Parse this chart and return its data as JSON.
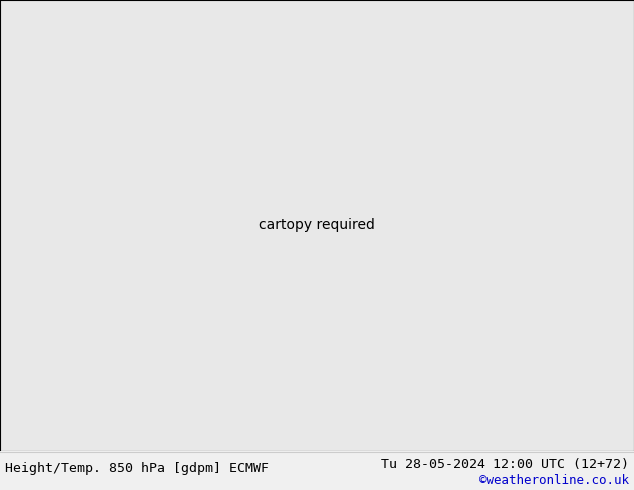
{
  "title_left": "Height/Temp. 850 hPa [gdpm] ECMWF",
  "title_right": "Tu 28-05-2024 12:00 UTC (12+72)",
  "watermark": "©weatheronline.co.uk",
  "fig_width": 6.34,
  "fig_height": 4.9,
  "dpi": 100,
  "ocean_color": "#e8e8e8",
  "land_color": "#c8f0a0",
  "border_color": "#aaaaaa",
  "watermark_color": "#0000cc",
  "bottom_bg": "#f0f0f0",
  "lon_min": -100,
  "lon_max": -20,
  "lat_min": -65,
  "lat_max": 15
}
